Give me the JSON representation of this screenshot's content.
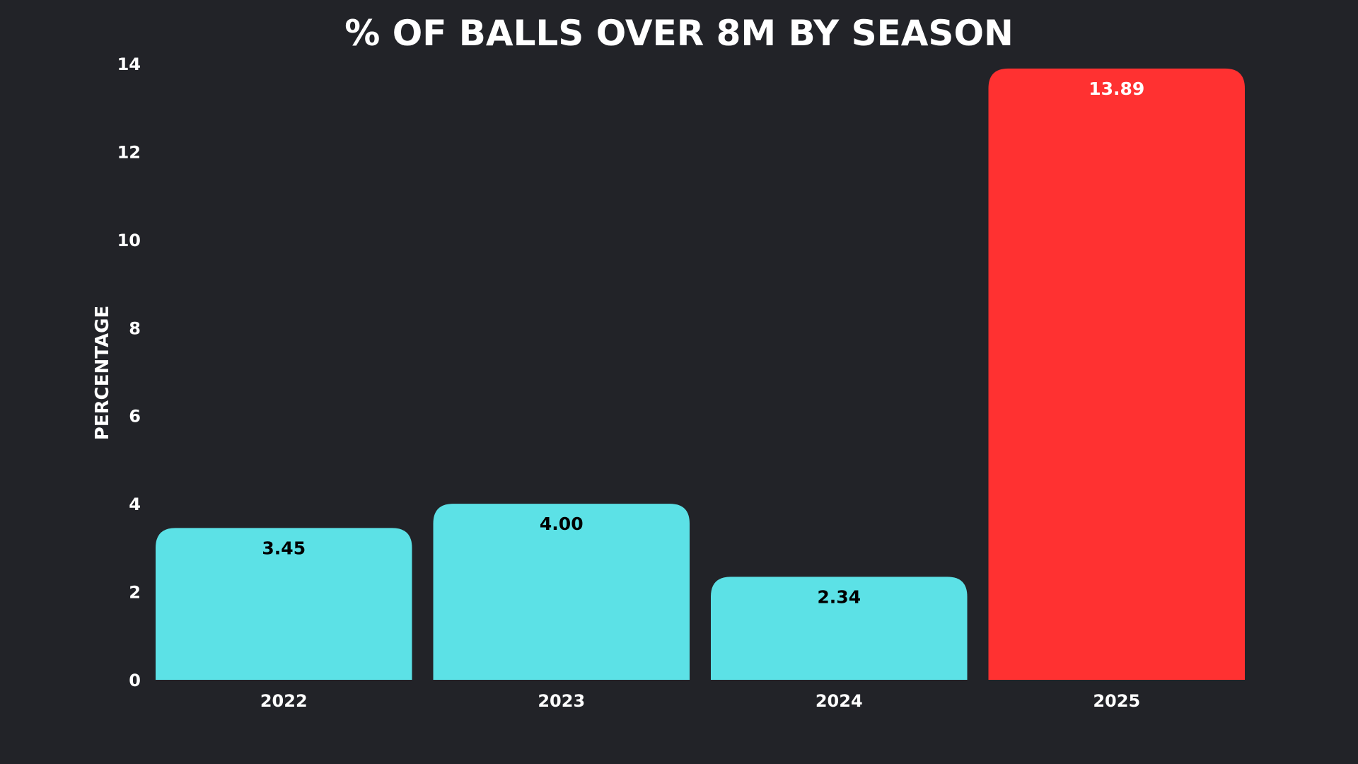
{
  "chart_data": {
    "type": "bar",
    "title": "% OF BALLS OVER 8M BY SEASON",
    "xlabel": "",
    "ylabel": "PERCENTAGE",
    "categories": [
      "2022",
      "2023",
      "2024",
      "2025"
    ],
    "values": [
      3.45,
      4.0,
      2.34,
      13.89
    ],
    "value_labels": [
      "3.45",
      "4.00",
      "2.34",
      "13.89"
    ],
    "ylim": [
      0,
      14
    ],
    "yticks": [
      0,
      2,
      4,
      6,
      8,
      10,
      12,
      14
    ],
    "grid": false,
    "legend": "none",
    "colors": {
      "background": "#222328",
      "bar_default": "#5CE1E6",
      "bar_highlight": "#FF3131",
      "label_on_default": "#000000",
      "label_on_highlight": "#FFFFFF",
      "text": "#FFFFFF"
    },
    "highlight_categories": [
      "2025"
    ]
  }
}
